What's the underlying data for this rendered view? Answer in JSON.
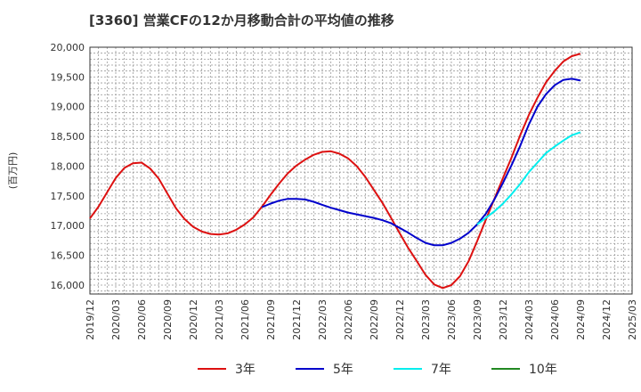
{
  "chart_data": {
    "type": "line",
    "title": "[3360]  営業CFの12か月移動合計の平均値の推移",
    "ylabel": "(百万円)",
    "xlabel": "",
    "ylim": [
      15850,
      20000
    ],
    "yticks": [
      16000,
      16500,
      17000,
      17500,
      18000,
      18500,
      19000,
      19500,
      20000
    ],
    "ytick_labels": [
      "16,000",
      "16,500",
      "17,000",
      "17,500",
      "18,000",
      "18,500",
      "19,000",
      "19,500",
      "20,000"
    ],
    "xticks": [
      "2019/12",
      "2020/03",
      "2020/06",
      "2020/09",
      "2020/12",
      "2021/03",
      "2021/06",
      "2021/09",
      "2021/12",
      "2022/03",
      "2022/06",
      "2022/09",
      "2022/12",
      "2023/03",
      "2023/06",
      "2023/09",
      "2023/12",
      "2024/03",
      "2024/06",
      "2024/09",
      "2024/12",
      "2025/03"
    ],
    "grid": true,
    "legend_position": "bottom",
    "series": [
      {
        "name": "3年",
        "color": "#dd1111",
        "points": [
          [
            "2019/12",
            17120
          ],
          [
            "2020/01",
            17320
          ],
          [
            "2020/02",
            17560
          ],
          [
            "2020/03",
            17800
          ],
          [
            "2020/04",
            17970
          ],
          [
            "2020/05",
            18050
          ],
          [
            "2020/06",
            18060
          ],
          [
            "2020/07",
            17960
          ],
          [
            "2020/08",
            17790
          ],
          [
            "2020/09",
            17540
          ],
          [
            "2020/10",
            17290
          ],
          [
            "2020/11",
            17110
          ],
          [
            "2020/12",
            16980
          ],
          [
            "2021/01",
            16900
          ],
          [
            "2021/02",
            16860
          ],
          [
            "2021/03",
            16850
          ],
          [
            "2021/04",
            16870
          ],
          [
            "2021/05",
            16930
          ],
          [
            "2021/06",
            17020
          ],
          [
            "2021/07",
            17140
          ],
          [
            "2021/08",
            17320
          ],
          [
            "2021/09",
            17520
          ],
          [
            "2021/10",
            17710
          ],
          [
            "2021/11",
            17880
          ],
          [
            "2021/12",
            18010
          ],
          [
            "2022/01",
            18110
          ],
          [
            "2022/02",
            18190
          ],
          [
            "2022/03",
            18240
          ],
          [
            "2022/04",
            18250
          ],
          [
            "2022/05",
            18210
          ],
          [
            "2022/06",
            18130
          ],
          [
            "2022/07",
            18000
          ],
          [
            "2022/08",
            17820
          ],
          [
            "2022/09",
            17600
          ],
          [
            "2022/10",
            17380
          ],
          [
            "2022/11",
            17130
          ],
          [
            "2022/12",
            16870
          ],
          [
            "2023/01",
            16620
          ],
          [
            "2023/02",
            16400
          ],
          [
            "2023/03",
            16170
          ],
          [
            "2023/04",
            16010
          ],
          [
            "2023/05",
            15950
          ],
          [
            "2023/06",
            16000
          ],
          [
            "2023/07",
            16150
          ],
          [
            "2023/08",
            16400
          ],
          [
            "2023/09",
            16740
          ],
          [
            "2023/10",
            17100
          ],
          [
            "2023/11",
            17450
          ],
          [
            "2023/12",
            17800
          ],
          [
            "2024/01",
            18150
          ],
          [
            "2024/02",
            18520
          ],
          [
            "2024/03",
            18860
          ],
          [
            "2024/04",
            19150
          ],
          [
            "2024/05",
            19410
          ],
          [
            "2024/06",
            19600
          ],
          [
            "2024/07",
            19760
          ],
          [
            "2024/08",
            19850
          ],
          [
            "2024/09",
            19890
          ]
        ]
      },
      {
        "name": "5年",
        "color": "#0000cc",
        "points": [
          [
            "2021/08",
            17310
          ],
          [
            "2021/09",
            17370
          ],
          [
            "2021/10",
            17420
          ],
          [
            "2021/11",
            17450
          ],
          [
            "2021/12",
            17450
          ],
          [
            "2022/01",
            17440
          ],
          [
            "2022/02",
            17400
          ],
          [
            "2022/03",
            17350
          ],
          [
            "2022/04",
            17300
          ],
          [
            "2022/05",
            17260
          ],
          [
            "2022/06",
            17220
          ],
          [
            "2022/07",
            17190
          ],
          [
            "2022/08",
            17160
          ],
          [
            "2022/09",
            17130
          ],
          [
            "2022/10",
            17090
          ],
          [
            "2022/11",
            17040
          ],
          [
            "2022/12",
            16960
          ],
          [
            "2023/01",
            16880
          ],
          [
            "2023/02",
            16790
          ],
          [
            "2023/03",
            16710
          ],
          [
            "2023/04",
            16670
          ],
          [
            "2023/05",
            16670
          ],
          [
            "2023/06",
            16710
          ],
          [
            "2023/07",
            16780
          ],
          [
            "2023/08",
            16880
          ],
          [
            "2023/09",
            17020
          ],
          [
            "2023/10",
            17200
          ],
          [
            "2023/11",
            17440
          ],
          [
            "2023/12",
            17720
          ],
          [
            "2024/01",
            18020
          ],
          [
            "2024/02",
            18340
          ],
          [
            "2024/03",
            18700
          ],
          [
            "2024/04",
            19000
          ],
          [
            "2024/05",
            19210
          ],
          [
            "2024/06",
            19360
          ],
          [
            "2024/07",
            19450
          ],
          [
            "2024/08",
            19470
          ],
          [
            "2024/09",
            19440
          ]
        ]
      },
      {
        "name": "7年",
        "color": "#00eeee",
        "points": [
          [
            "2023/09",
            17020
          ],
          [
            "2023/10",
            17130
          ],
          [
            "2023/11",
            17240
          ],
          [
            "2023/12",
            17370
          ],
          [
            "2024/01",
            17530
          ],
          [
            "2024/02",
            17700
          ],
          [
            "2024/03",
            17900
          ],
          [
            "2024/04",
            18060
          ],
          [
            "2024/05",
            18220
          ],
          [
            "2024/06",
            18330
          ],
          [
            "2024/07",
            18430
          ],
          [
            "2024/08",
            18520
          ],
          [
            "2024/09",
            18570
          ]
        ]
      },
      {
        "name": "10年",
        "color": "#228822",
        "points": []
      }
    ]
  }
}
